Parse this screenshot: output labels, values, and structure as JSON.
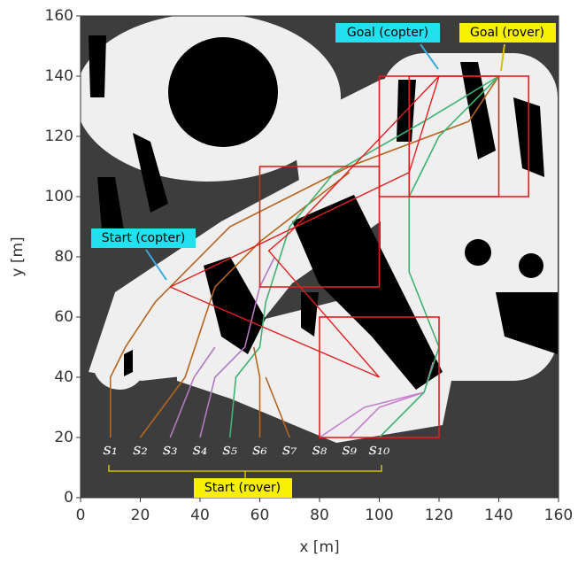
{
  "chart_data": {
    "type": "path-map",
    "xlabel": "x [m]",
    "ylabel": "y [m]",
    "xlim": [
      0,
      160
    ],
    "ylim": [
      0,
      160
    ],
    "xticks": [
      0,
      20,
      40,
      60,
      80,
      100,
      120,
      140,
      160
    ],
    "yticks": [
      0,
      20,
      40,
      60,
      80,
      100,
      120,
      140,
      160
    ],
    "annotations": [
      "Goal (copter)",
      "Goal (rover)",
      "Start (copter)",
      "Start (rover)"
    ],
    "regions": {
      "color": "#e02020",
      "boxes": [
        {
          "x": [
            60,
            100
          ],
          "y": [
            70,
            110
          ]
        },
        {
          "x": [
            100,
            150
          ],
          "y": [
            100,
            140
          ]
        },
        {
          "x": [
            110,
            140
          ],
          "y": [
            100,
            140
          ]
        },
        {
          "x": [
            80,
            120
          ],
          "y": [
            20,
            60
          ]
        }
      ]
    },
    "copter": {
      "color": "#e02020",
      "x": [
        30,
        110,
        120,
        70,
        63,
        100,
        30
      ],
      "y": [
        70,
        108,
        140,
        88,
        82,
        40,
        70
      ]
    },
    "series": [
      {
        "name": "s₁",
        "color": "#b5651d",
        "x": [
          10,
          10,
          15,
          25,
          50,
          90,
          130,
          140
        ],
        "y": [
          20,
          40,
          50,
          65,
          90,
          110,
          125,
          140
        ]
      },
      {
        "name": "s₂",
        "color": "#b5651d",
        "x": [
          20,
          35,
          40,
          45,
          60,
          90
        ],
        "y": [
          20,
          40,
          55,
          70,
          85,
          108
        ]
      },
      {
        "name": "s₃",
        "color": "#b07ac0",
        "x": [
          30,
          38,
          45
        ],
        "y": [
          20,
          40,
          50
        ]
      },
      {
        "name": "s₄",
        "color": "#b07ac0",
        "x": [
          40,
          45,
          55,
          60,
          65
        ],
        "y": [
          20,
          40,
          50,
          70,
          80
        ]
      },
      {
        "name": "s₅",
        "color": "#3cb371",
        "x": [
          50,
          52,
          60,
          62,
          70,
          85,
          115,
          140
        ],
        "y": [
          20,
          40,
          50,
          65,
          90,
          108,
          125,
          140
        ]
      },
      {
        "name": "s₆",
        "color": "#b5651d",
        "x": [
          60,
          60,
          58
        ],
        "y": [
          20,
          40,
          50
        ]
      },
      {
        "name": "s₇",
        "color": "#b5651d",
        "x": [
          70,
          62
        ],
        "y": [
          20,
          40
        ]
      },
      {
        "name": "s₈",
        "color": "#c77fd0",
        "x": [
          80,
          95,
          115,
          118
        ],
        "y": [
          20,
          30,
          35,
          45
        ]
      },
      {
        "name": "s₉",
        "color": "#c77fd0",
        "x": [
          90,
          100,
          115
        ],
        "y": [
          20,
          30,
          35
        ]
      },
      {
        "name": "s₁₀",
        "color": "#3cb371",
        "x": [
          100,
          115,
          120,
          110,
          110,
          120,
          140
        ],
        "y": [
          20,
          35,
          50,
          75,
          100,
          120,
          140
        ]
      }
    ]
  }
}
